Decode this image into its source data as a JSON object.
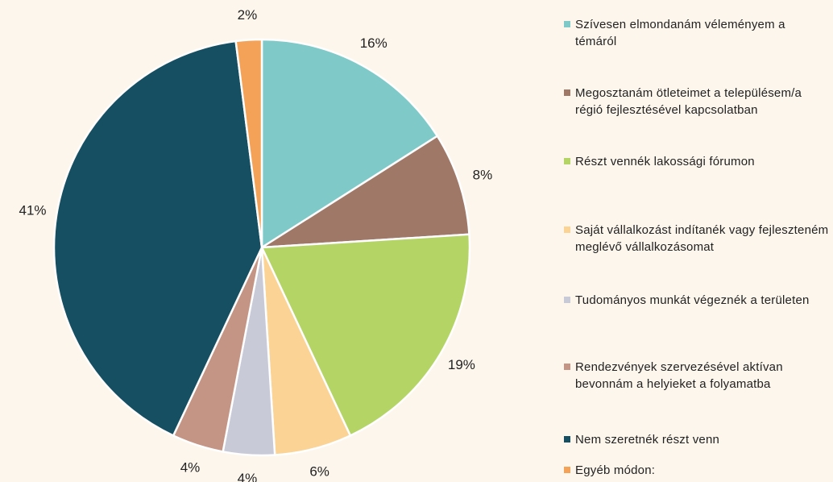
{
  "chart_data": {
    "type": "pie",
    "categories": [
      "Szívesen elmondanám véleményem a témáról",
      "Megosztanám ötleteimet a településem/a régió fejlesztésével kapcsolatban",
      "Részt vennék lakossági fórumon",
      "Saját vállalkozást indítanék vagy fejleszteném meglévő vállalkozásomat",
      "Tudományos munkát végeznék a területen",
      "Rendezvények szervezésével aktívan bevonnám a helyieket a folyamatba",
      "Nem szeretnék részt venn",
      "Egyéb módon:"
    ],
    "values": [
      16,
      8,
      19,
      6,
      4,
      4,
      41,
      2
    ],
    "value_labels": [
      "16%",
      "8%",
      "19%",
      "6%",
      "4%",
      "4%",
      "41%",
      "2%"
    ],
    "colors": [
      "#7fcac9",
      "#a07868",
      "#b5d466",
      "#fad395",
      "#c8cad8",
      "#c49484",
      "#174f62",
      "#f4a258"
    ],
    "legend": "right"
  }
}
